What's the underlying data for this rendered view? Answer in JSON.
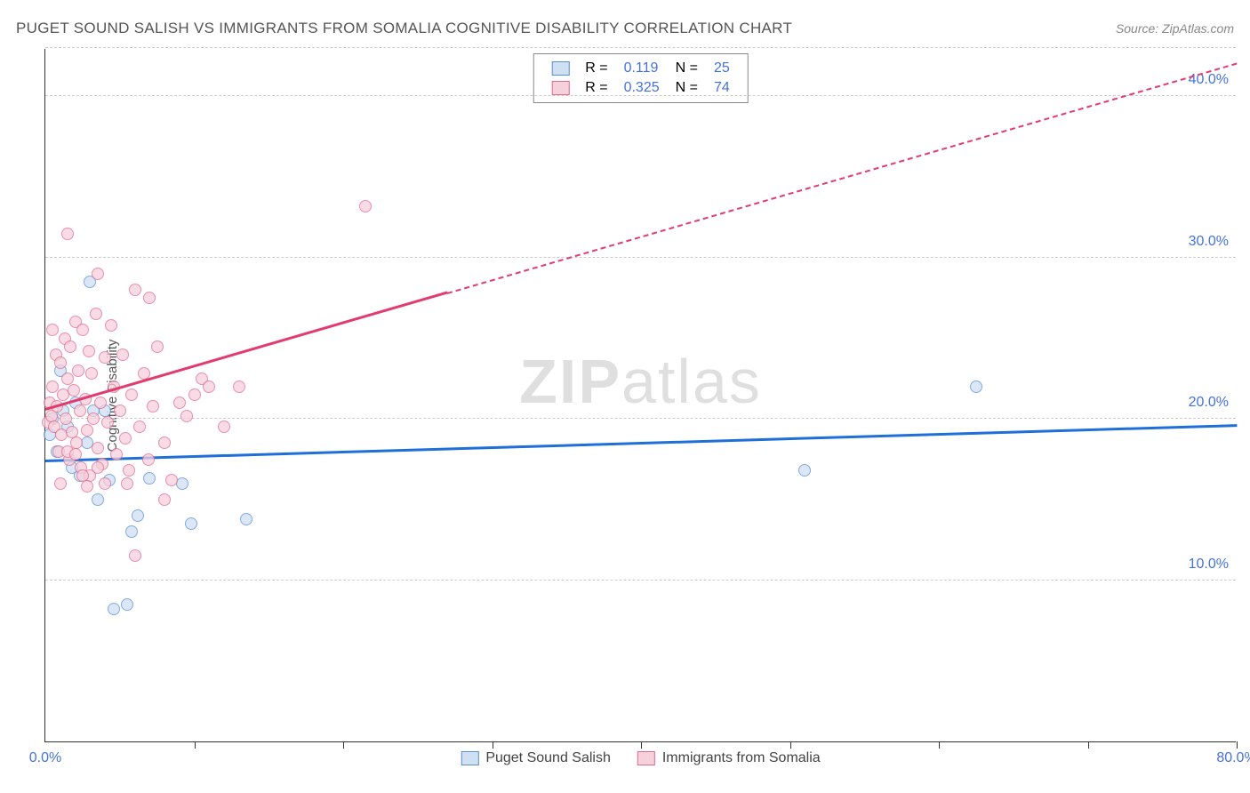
{
  "title": "PUGET SOUND SALISH VS IMMIGRANTS FROM SOMALIA COGNITIVE DISABILITY CORRELATION CHART",
  "source": "Source: ZipAtlas.com",
  "ylabel": "Cognitive Disability",
  "watermark_prefix": "ZIP",
  "watermark_suffix": "atlas",
  "chart": {
    "type": "scatter",
    "xlim": [
      0,
      80
    ],
    "ylim": [
      0,
      43
    ],
    "x_ticks": [
      0,
      10,
      20,
      30,
      40,
      50,
      60,
      70,
      80
    ],
    "x_tick_labels": {
      "0": "0.0%",
      "80": "80.0%"
    },
    "y_ticks": [
      10,
      20,
      30,
      40
    ],
    "y_tick_labels": {
      "10": "10.0%",
      "20": "20.0%",
      "30": "30.0%",
      "40": "40.0%"
    },
    "background_color": "#ffffff",
    "grid_color": "#cccccc",
    "axis_color": "#333333",
    "marker_radius": 7,
    "series": [
      {
        "name": "Puget Sound Salish",
        "fill": "#cfe0f3",
        "stroke": "#5a8fd6",
        "line_color": "#1f6fd8",
        "trend": {
          "x1": 0,
          "y1": 17.3,
          "x2": 80,
          "y2": 19.5,
          "dash_from_x": 80
        },
        "R": "0.119",
        "N": "25",
        "points": [
          [
            0.3,
            19.0
          ],
          [
            0.5,
            20.0
          ],
          [
            0.8,
            18.0
          ],
          [
            1.0,
            23.0
          ],
          [
            1.2,
            20.5
          ],
          [
            1.5,
            19.5
          ],
          [
            2.0,
            21.0
          ],
          [
            2.3,
            16.5
          ],
          [
            2.8,
            18.5
          ],
          [
            3.0,
            28.5
          ],
          [
            3.2,
            20.5
          ],
          [
            3.5,
            15.0
          ],
          [
            4.0,
            20.5
          ],
          [
            4.3,
            16.2
          ],
          [
            4.6,
            8.2
          ],
          [
            5.5,
            8.5
          ],
          [
            5.8,
            13.0
          ],
          [
            6.2,
            14.0
          ],
          [
            7.0,
            16.3
          ],
          [
            9.2,
            16.0
          ],
          [
            9.8,
            13.5
          ],
          [
            13.5,
            13.8
          ],
          [
            51.0,
            16.8
          ],
          [
            62.5,
            22.0
          ],
          [
            1.8,
            17.0
          ]
        ]
      },
      {
        "name": "Immigrants from Somalia",
        "fill": "#f6d0db",
        "stroke": "#e26b8e",
        "line_color": "#e23b6e",
        "trend": {
          "x1": 0,
          "y1": 20.5,
          "x2": 80,
          "y2": 42.0,
          "dash_from_x": 27
        },
        "R": "0.325",
        "N": "74",
        "points": [
          [
            0.2,
            19.8
          ],
          [
            0.3,
            21.0
          ],
          [
            0.4,
            20.2
          ],
          [
            0.5,
            22.0
          ],
          [
            0.6,
            19.5
          ],
          [
            0.7,
            24.0
          ],
          [
            0.8,
            20.8
          ],
          [
            0.9,
            18.0
          ],
          [
            1.0,
            23.5
          ],
          [
            1.1,
            19.0
          ],
          [
            1.2,
            21.5
          ],
          [
            1.3,
            25.0
          ],
          [
            1.4,
            20.0
          ],
          [
            1.5,
            22.5
          ],
          [
            1.6,
            17.5
          ],
          [
            1.7,
            24.5
          ],
          [
            1.8,
            19.2
          ],
          [
            1.9,
            21.8
          ],
          [
            2.0,
            26.0
          ],
          [
            2.1,
            18.5
          ],
          [
            2.2,
            23.0
          ],
          [
            2.3,
            20.5
          ],
          [
            2.4,
            17.0
          ],
          [
            2.5,
            25.5
          ],
          [
            2.7,
            21.2
          ],
          [
            2.8,
            19.3
          ],
          [
            2.9,
            24.2
          ],
          [
            3.0,
            16.5
          ],
          [
            3.1,
            22.8
          ],
          [
            3.2,
            20.0
          ],
          [
            3.4,
            26.5
          ],
          [
            3.5,
            18.2
          ],
          [
            3.7,
            21.0
          ],
          [
            3.8,
            17.2
          ],
          [
            4.0,
            23.8
          ],
          [
            4.2,
            19.8
          ],
          [
            4.4,
            25.8
          ],
          [
            4.6,
            22.0
          ],
          [
            4.8,
            17.8
          ],
          [
            5.0,
            20.5
          ],
          [
            5.2,
            24.0
          ],
          [
            5.4,
            18.8
          ],
          [
            5.6,
            16.8
          ],
          [
            5.8,
            21.5
          ],
          [
            6.0,
            28.0
          ],
          [
            6.3,
            19.5
          ],
          [
            6.6,
            22.8
          ],
          [
            6.9,
            17.5
          ],
          [
            7.2,
            20.8
          ],
          [
            7.5,
            24.5
          ],
          [
            8.0,
            18.5
          ],
          [
            8.5,
            16.2
          ],
          [
            9.0,
            21.0
          ],
          [
            9.5,
            20.2
          ],
          [
            1.5,
            31.5
          ],
          [
            3.5,
            29.0
          ],
          [
            5.5,
            16.0
          ],
          [
            7.0,
            27.5
          ],
          [
            8.0,
            15.0
          ],
          [
            2.5,
            16.5
          ],
          [
            10.0,
            21.5
          ],
          [
            10.5,
            22.5
          ],
          [
            11.0,
            22.0
          ],
          [
            12.0,
            19.5
          ],
          [
            13.0,
            22.0
          ],
          [
            6.0,
            11.5
          ],
          [
            1.0,
            16.0
          ],
          [
            1.5,
            18.0
          ],
          [
            2.0,
            17.8
          ],
          [
            2.8,
            15.8
          ],
          [
            3.5,
            17.0
          ],
          [
            4.0,
            16.0
          ],
          [
            21.5,
            33.2
          ],
          [
            0.5,
            25.5
          ]
        ]
      }
    ]
  },
  "legend_top_labels": {
    "R": "R =",
    "N": "N ="
  }
}
